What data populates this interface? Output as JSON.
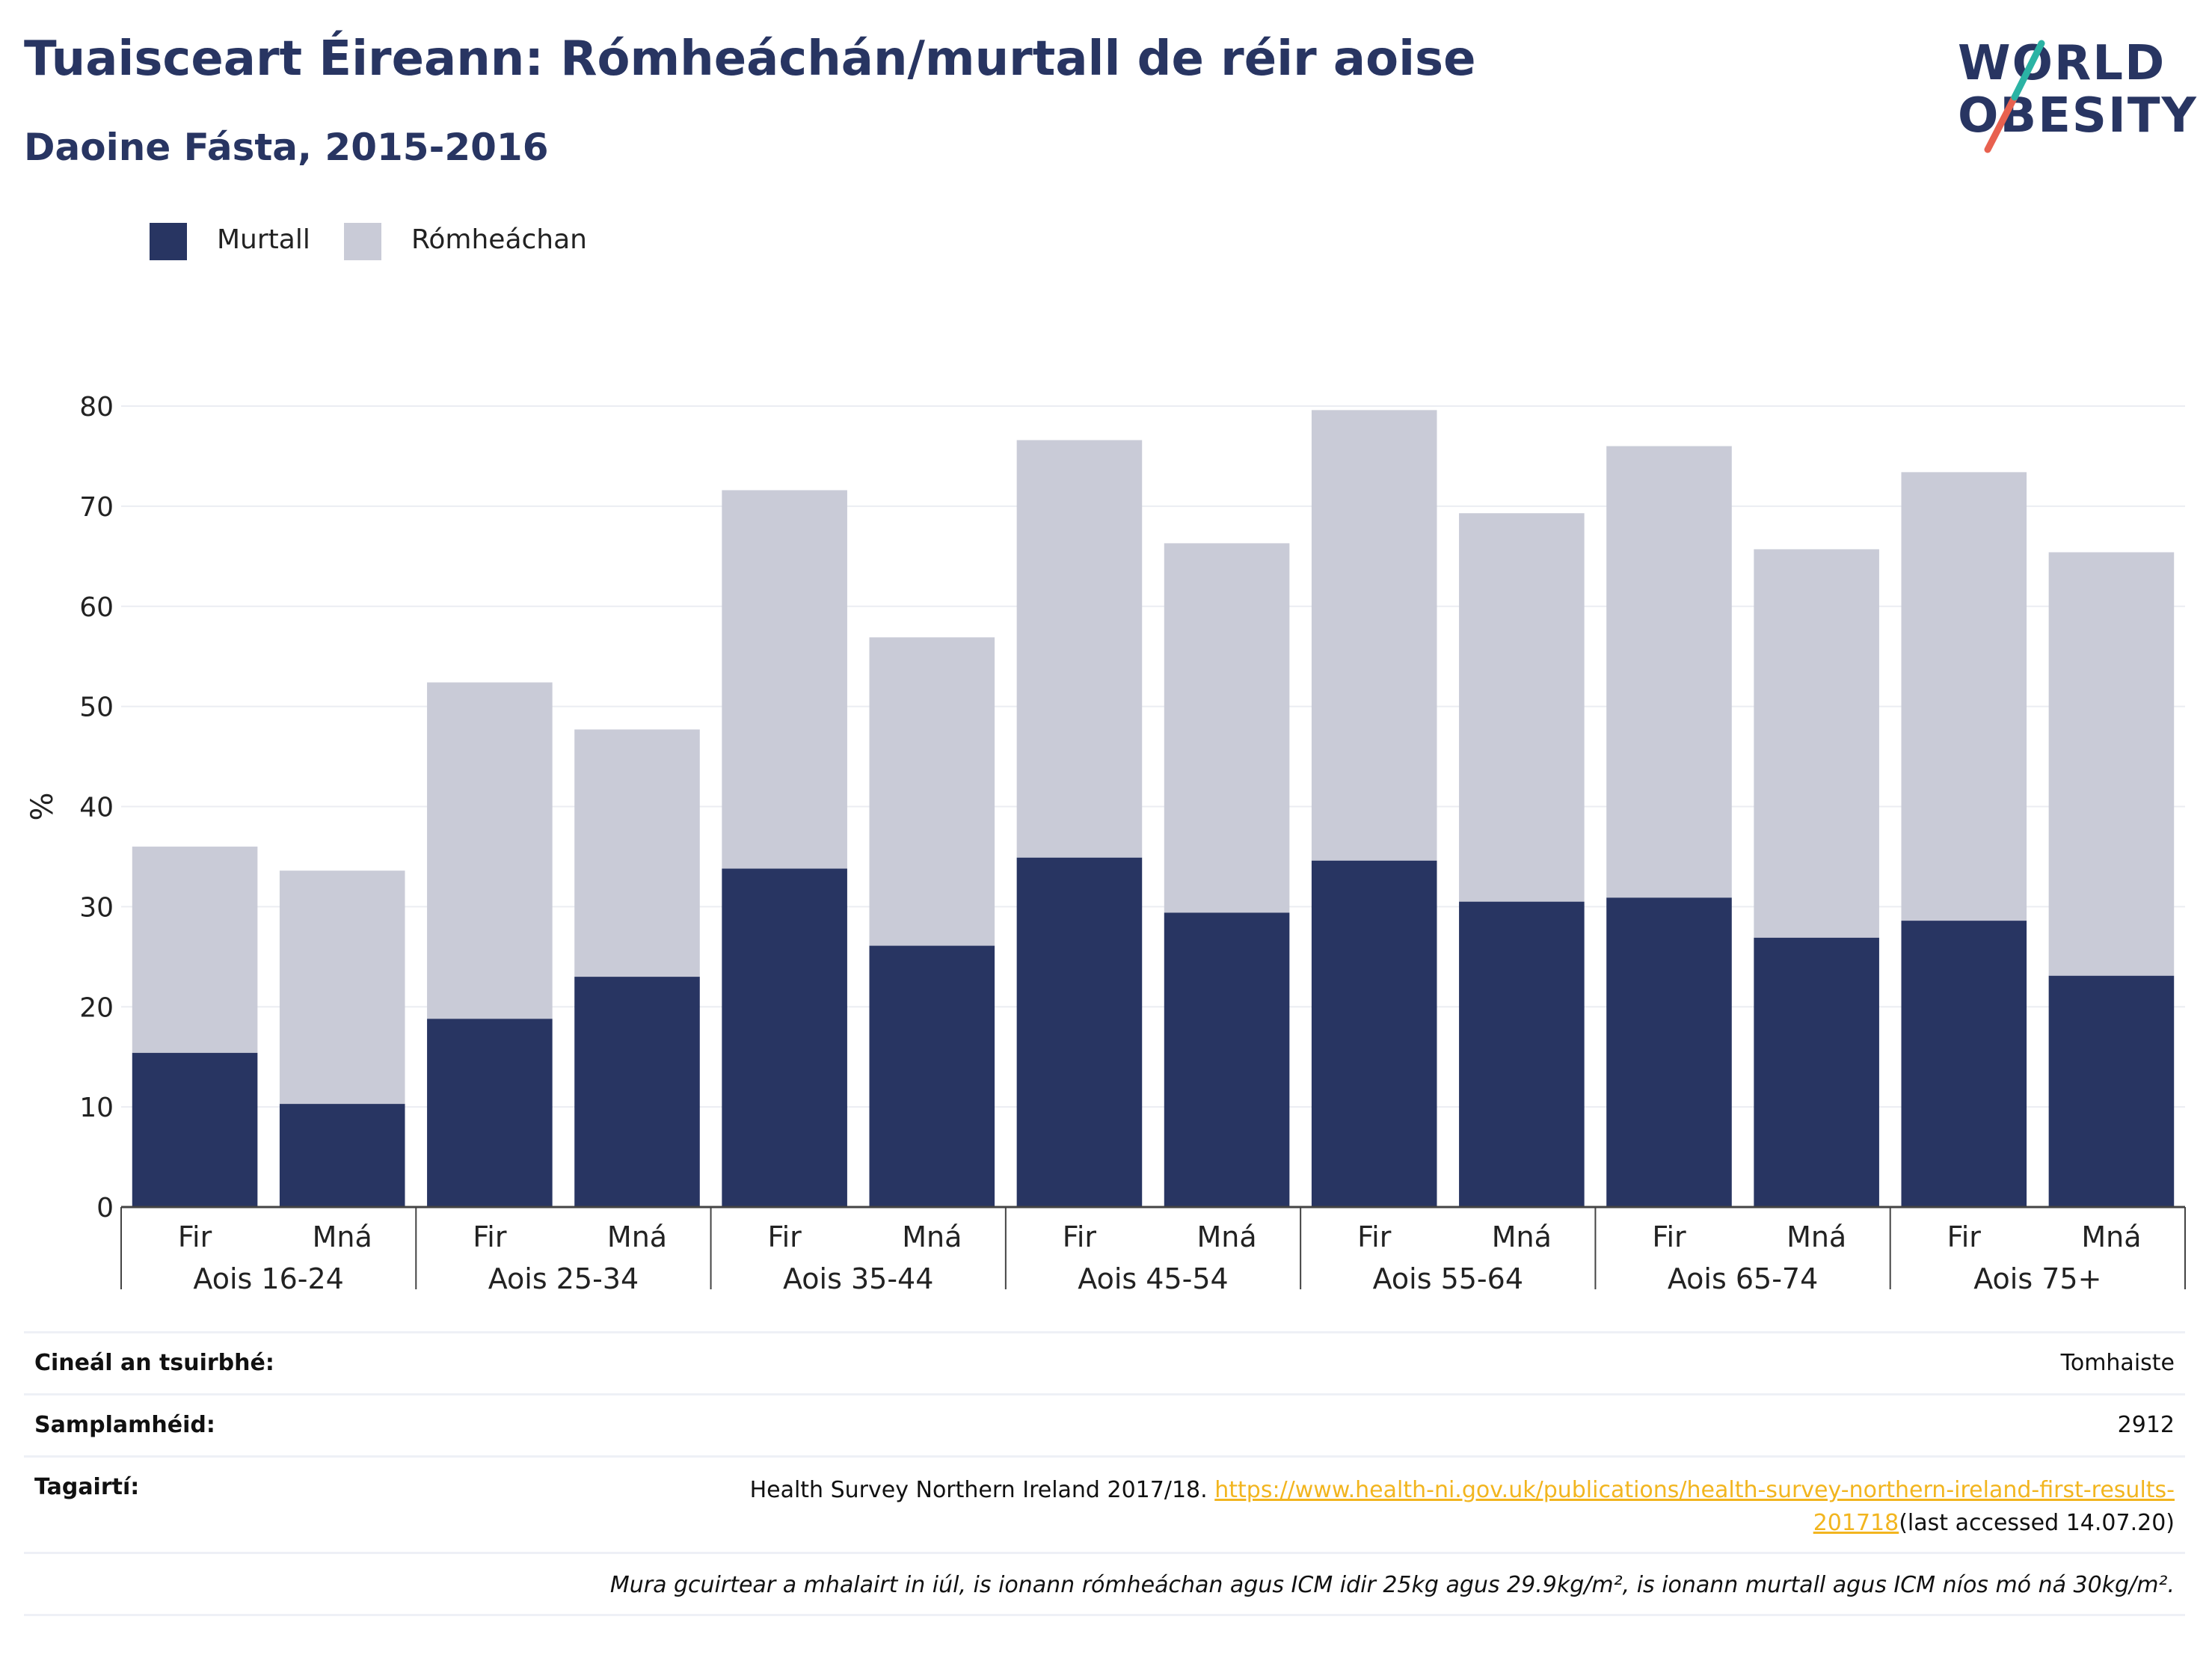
{
  "header": {
    "title": "Tuaisceart Éireann: Rómheáchán/murtall de réir aoise",
    "subtitle": "Daoine Fásta, 2015-2016"
  },
  "logo": {
    "line1": "WORLD",
    "line2": "OBESITY",
    "accent_teal": "#2bb3a4",
    "accent_red": "#e8614f"
  },
  "legend": [
    {
      "label": "Murtall",
      "color": "#283562"
    },
    {
      "label": "Rómheáchan",
      "color": "#c9cbd7"
    }
  ],
  "chart_data": {
    "type": "bar",
    "stacked": true,
    "ylabel": "%",
    "ylim": [
      0,
      80
    ],
    "yticks": [
      0,
      10,
      20,
      30,
      40,
      50,
      60,
      70,
      80
    ],
    "grid": true,
    "legend_position": "top-left",
    "groups": [
      "Aois 16-24",
      "Aois 25-34",
      "Aois 35-44",
      "Aois 45-54",
      "Aois 55-64",
      "Aois 65-74",
      "Aois 75+"
    ],
    "subcategories": [
      "Fir",
      "Mná"
    ],
    "series": [
      {
        "name": "Murtall",
        "color": "#283562",
        "values": [
          15.4,
          10.3,
          18.8,
          23.0,
          33.8,
          26.1,
          34.9,
          29.4,
          34.6,
          30.5,
          30.9,
          26.9,
          28.6,
          23.1
        ]
      },
      {
        "name": "Rómheáchan",
        "color": "#c9cbd7",
        "values": [
          20.6,
          23.3,
          33.6,
          24.7,
          37.8,
          30.8,
          41.7,
          36.9,
          45.0,
          38.8,
          45.1,
          38.8,
          44.8,
          42.3
        ]
      }
    ]
  },
  "info": {
    "survey_label": "Cineál an tsuirbhé:",
    "survey_value": "Tomhaiste",
    "sample_label": "Samplamhéid:",
    "sample_value": "2912",
    "refs_label": "Tagairtí:",
    "refs_text": "Health Survey Northern Ireland 2017/18.",
    "refs_link_1": "https://www.health-ni.gov.uk/publications/health-survey-northern-ireland-first-results-",
    "refs_link_2": "201718",
    "refs_access": "(last accessed 14.07.20)",
    "note": "Mura gcuirtear a mhalairt in iúl, is ionann rómheáchan agus ICM idir 25kg agus 29.9kg/m², is ionann murtall agus ICM níos mó ná 30kg/m²."
  }
}
